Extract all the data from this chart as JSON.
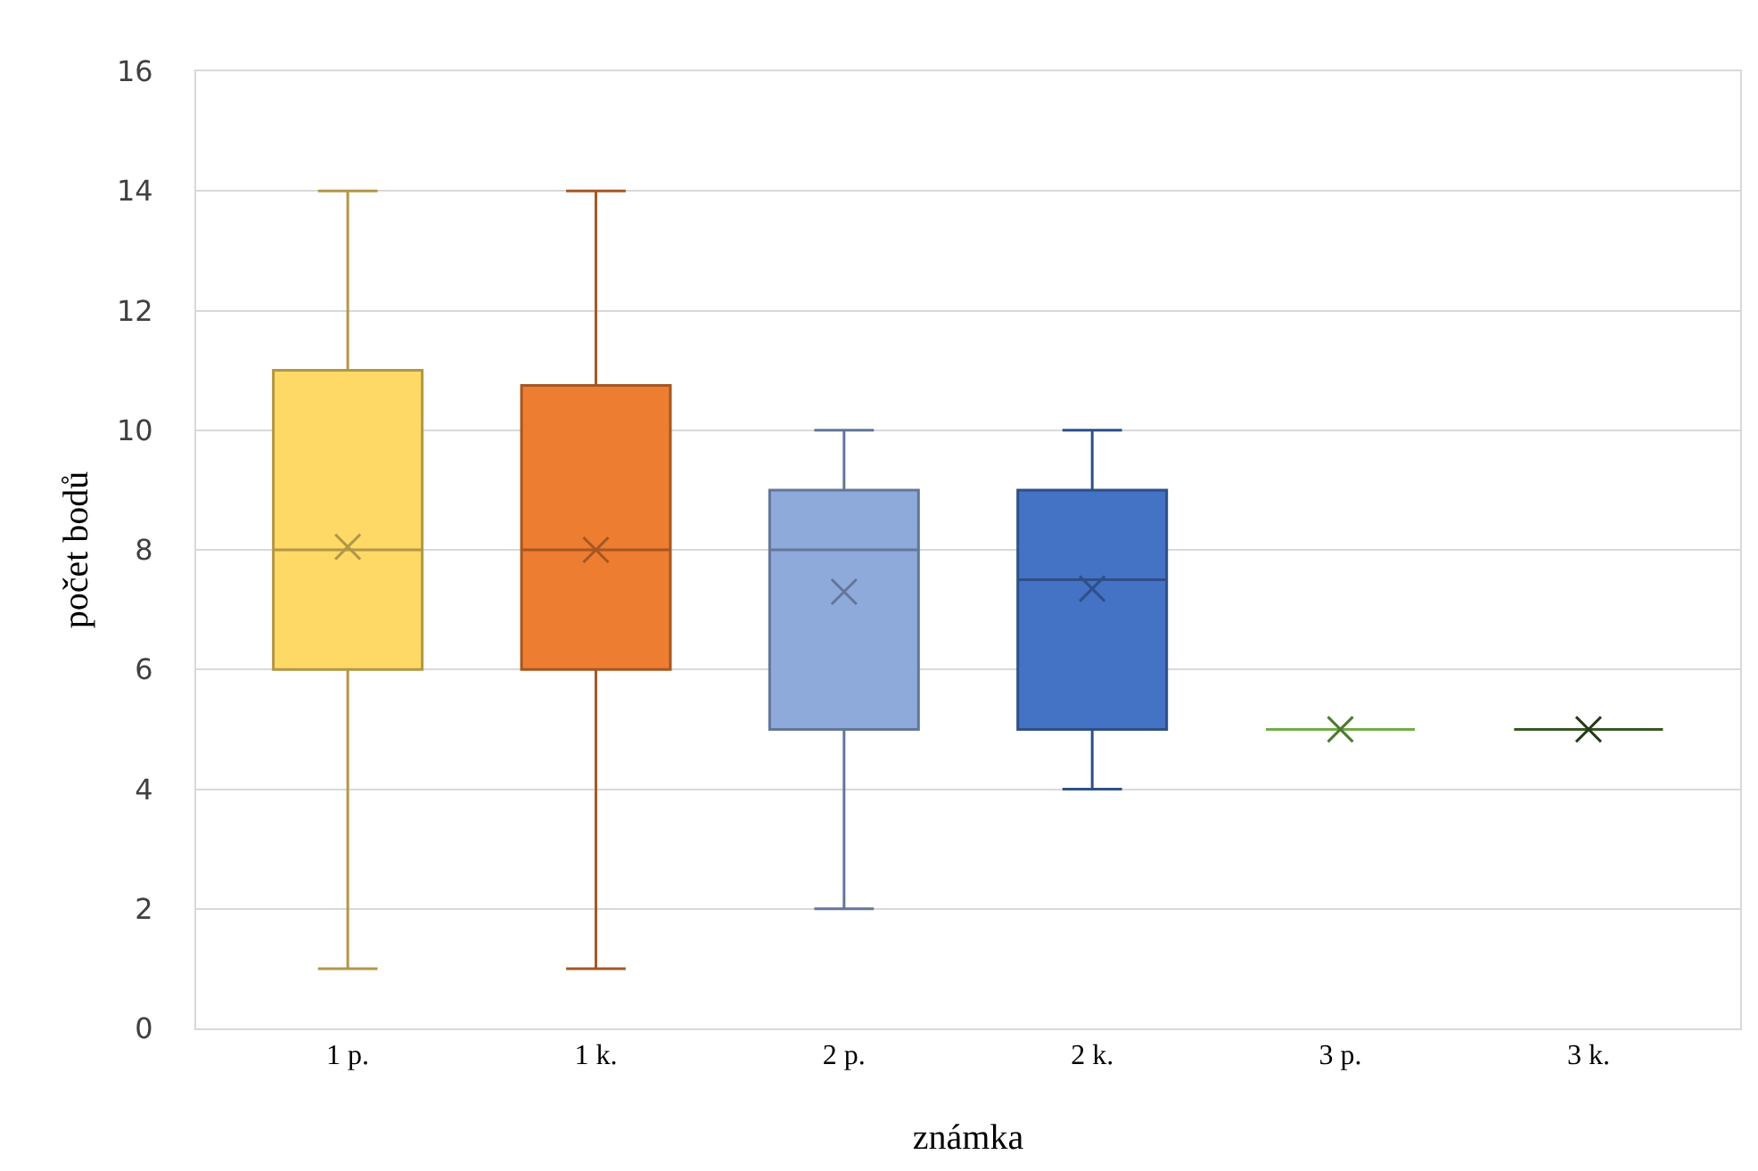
{
  "chart_data": {
    "type": "box",
    "xlabel": "známka",
    "ylabel": "počet bodů",
    "categories": [
      "1 p.",
      "1 k.",
      "2 p.",
      "2 k.",
      "3 p.",
      "3 k."
    ],
    "colors": [
      "#ffd966",
      "#ed7d31",
      "#8eaadb",
      "#4472c4",
      "#70ad47",
      "#375623"
    ],
    "boxes": [
      {
        "low": 1,
        "q1": 6,
        "median": 8,
        "q3": 11,
        "high": 14,
        "mean": 8.05
      },
      {
        "low": 1,
        "q1": 6,
        "median": 8,
        "q3": 10.75,
        "high": 14,
        "mean": 8
      },
      {
        "low": 2,
        "q1": 5,
        "median": 8,
        "q3": 9,
        "high": 10,
        "mean": 7.3
      },
      {
        "low": 4,
        "q1": 5,
        "median": 7.5,
        "q3": 9,
        "high": 10,
        "mean": 7.35
      },
      {
        "low": 5,
        "q1": 5,
        "median": 5,
        "q3": 5,
        "high": 5,
        "mean": 5
      },
      {
        "low": 5,
        "q1": 5,
        "median": 5,
        "q3": 5,
        "high": 5,
        "mean": 5
      }
    ],
    "ylim": [
      0,
      16
    ],
    "yticks": [
      0,
      2,
      4,
      6,
      8,
      10,
      12,
      14,
      16
    ],
    "grid": "y",
    "marker": "cross"
  }
}
